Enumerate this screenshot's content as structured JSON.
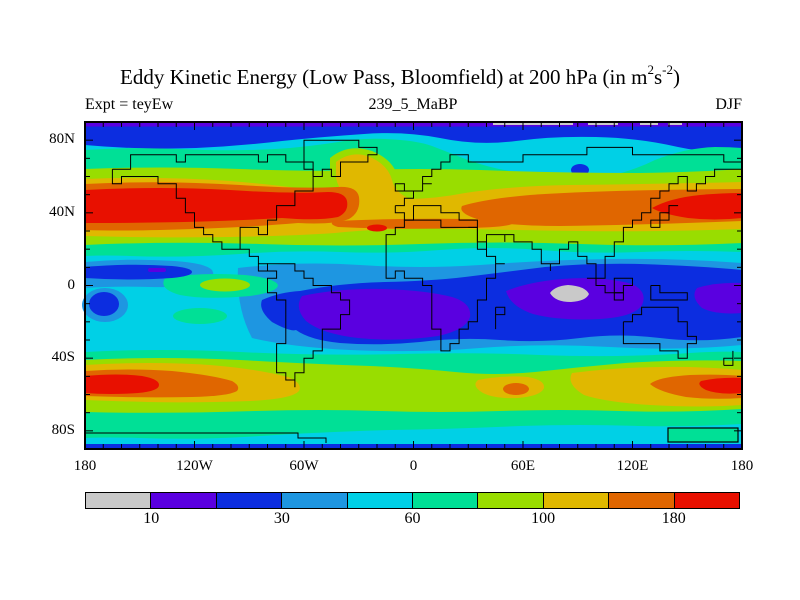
{
  "header": {
    "title": {
      "pre": "Eddy Kinetic Energy (Low Pass, Bloomfield) at 200 hPa (in m",
      "sup1": "2",
      "mid": "s",
      "sup2": "-2",
      "post": ")"
    },
    "experiment_label": "Expt = teyEw",
    "run_label": "239_5_MaBP",
    "season_label": "DJF"
  },
  "map": {
    "y_tick_labels": [
      "80N",
      "40N",
      "0",
      "40S",
      "80S"
    ],
    "x_tick_labels": [
      "180",
      "120W",
      "60W",
      "0",
      "60E",
      "120E",
      "180"
    ]
  },
  "colorbar": {
    "segment_colors": [
      "#c9c9c9",
      "#5a00e0",
      "#0c2de0",
      "#1e96e1",
      "#00d0e6",
      "#00e096",
      "#99dd00",
      "#e0b800",
      "#e06600",
      "#e81000"
    ],
    "labels": [
      {
        "text": "10",
        "boundary": 1
      },
      {
        "text": "30",
        "boundary": 3
      },
      {
        "text": "60",
        "boundary": 5
      },
      {
        "text": "100",
        "boundary": 7
      },
      {
        "text": "180",
        "boundary": 9
      }
    ]
  },
  "chart_data": {
    "type": "filled_contour_map",
    "title": "Eddy Kinetic Energy (Low Pass, Bloomfield) at 200 hPa (in m2 s-2)",
    "experiment": "teyEw",
    "run": "239_5_MaBP",
    "season": "DJF",
    "level_hPa": 200,
    "units": "m2 s-2",
    "projection": "equirectangular",
    "lon_range": [
      -180,
      180
    ],
    "lat_range": [
      -90,
      90
    ],
    "x_tick_labels": [
      "180",
      "120W",
      "60W",
      "0",
      "60E",
      "120E",
      "180"
    ],
    "y_tick_labels": [
      "80N",
      "40N",
      "0",
      "40S",
      "80S"
    ],
    "labeled_contour_levels": [
      10,
      30,
      60,
      100,
      180
    ],
    "n_color_bands": 10,
    "palette": [
      "#c9c9c9",
      "#5a00e0",
      "#0c2de0",
      "#1e96e1",
      "#00d0e6",
      "#00e096",
      "#99dd00",
      "#e0b800",
      "#e06600",
      "#e81000"
    ],
    "features": [
      {
        "name": "NH Pacific-North American storm track maximum",
        "approx_location": "45N, 180W-40W",
        "value": ">180"
      },
      {
        "name": "NH East Asian / NW Pacific jet maximum",
        "approx_location": "42N, 135E-180E",
        "value": ">180"
      },
      {
        "name": "Subtropical Atlantic-African filament",
        "approx_location": "33N, 40W-50E",
        "value": "100-180"
      },
      {
        "name": "Equatorial minimum, Indian Ocean (grey core)",
        "approx_location": "0-8S, 73E-96E",
        "value": "<10"
      },
      {
        "name": "Equatorial minimum, South America-Atlantic",
        "approx_location": "3S-27S, 60W-30E",
        "value": "10-20"
      },
      {
        "name": "SH storm track maximum, SE Pacific",
        "approx_location": "55S, 180W-145W",
        "value": ">180"
      },
      {
        "name": "SH storm track maximum, south of New Zealand",
        "approx_location": "55S, 155E-180E",
        "value": ">180"
      },
      {
        "name": "Polar caps minima",
        "approx_location": "88-90N and 88-90S",
        "value": "10-30"
      }
    ]
  }
}
